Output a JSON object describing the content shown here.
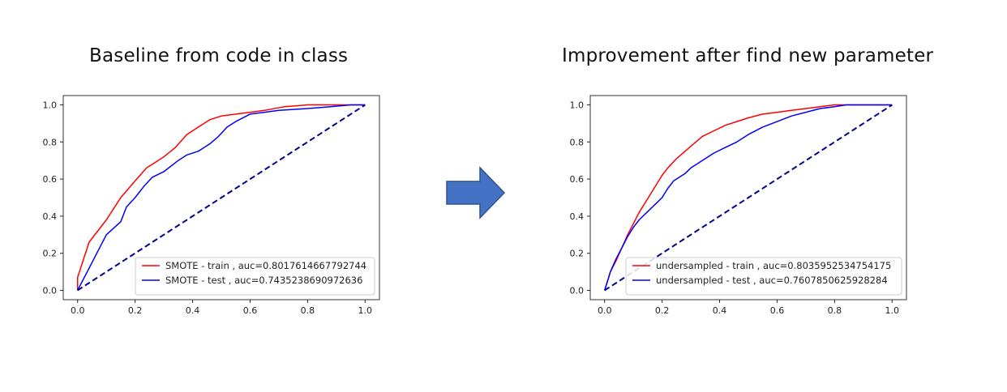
{
  "titles": {
    "left": "Baseline from code in class",
    "right": "Improvement after find new parameter"
  },
  "arrow_icon": "right-arrow",
  "colors": {
    "train": "#ff0000",
    "test": "#0000ff",
    "diagonal": "#00008b",
    "arrow": "#4472c4"
  },
  "chart_data": [
    {
      "type": "line",
      "title": "",
      "xlabel": "",
      "ylabel": "",
      "xlim": [
        0,
        1
      ],
      "ylim": [
        0,
        1
      ],
      "xticks": [
        "0.0",
        "0.2",
        "0.4",
        "0.6",
        "0.8",
        "1.0"
      ],
      "yticks": [
        "0.0",
        "0.2",
        "0.4",
        "0.6",
        "0.8",
        "1.0"
      ],
      "legend_position": "lower-right",
      "grid": false,
      "series": [
        {
          "name": "SMOTE - train , auc=0.8017614667792744",
          "color": "#ff0000",
          "x": [
            0,
            0,
            0.04,
            0.1,
            0.15,
            0.2,
            0.24,
            0.27,
            0.3,
            0.34,
            0.38,
            0.42,
            0.46,
            0.5,
            0.55,
            0.6,
            0.65,
            0.72,
            0.8,
            0.9,
            1.0
          ],
          "y": [
            0,
            0.07,
            0.26,
            0.38,
            0.5,
            0.59,
            0.66,
            0.69,
            0.72,
            0.77,
            0.84,
            0.88,
            0.92,
            0.94,
            0.95,
            0.96,
            0.97,
            0.99,
            1.0,
            1.0,
            1.0
          ]
        },
        {
          "name": "SMOTE - test , auc=0.7435238690972636",
          "color": "#0000ff",
          "x": [
            0,
            0.05,
            0.1,
            0.15,
            0.17,
            0.2,
            0.23,
            0.26,
            0.3,
            0.35,
            0.38,
            0.42,
            0.46,
            0.49,
            0.52,
            0.55,
            0.6,
            0.65,
            0.7,
            0.8,
            0.88,
            0.95,
            1.0
          ],
          "y": [
            0,
            0.15,
            0.3,
            0.37,
            0.45,
            0.5,
            0.56,
            0.61,
            0.64,
            0.7,
            0.73,
            0.75,
            0.79,
            0.83,
            0.88,
            0.91,
            0.95,
            0.96,
            0.97,
            0.98,
            0.99,
            1.0,
            1.0
          ]
        },
        {
          "name": "",
          "style": "dashed",
          "color": "#00008b",
          "x": [
            0,
            1
          ],
          "y": [
            0,
            1
          ]
        }
      ]
    },
    {
      "type": "line",
      "title": "",
      "xlabel": "",
      "ylabel": "",
      "xlim": [
        0,
        1
      ],
      "ylim": [
        0,
        1
      ],
      "xticks": [
        "0.0",
        "0.2",
        "0.4",
        "0.6",
        "0.8",
        "1.0"
      ],
      "yticks": [
        "0.0",
        "0.2",
        "0.4",
        "0.6",
        "0.8",
        "1.0"
      ],
      "legend_position": "lower-right",
      "grid": false,
      "series": [
        {
          "name": "undersampled - train , auc=0.8035952534754175",
          "color": "#ff0000",
          "x": [
            0,
            0.01,
            0.02,
            0.04,
            0.06,
            0.08,
            0.1,
            0.12,
            0.14,
            0.16,
            0.18,
            0.2,
            0.22,
            0.25,
            0.28,
            0.31,
            0.34,
            0.38,
            0.42,
            0.46,
            0.5,
            0.55,
            0.6,
            0.65,
            0.7,
            0.75,
            0.8,
            0.9,
            1.0
          ],
          "y": [
            0,
            0.05,
            0.1,
            0.16,
            0.23,
            0.3,
            0.36,
            0.42,
            0.47,
            0.52,
            0.57,
            0.62,
            0.66,
            0.71,
            0.75,
            0.79,
            0.83,
            0.86,
            0.89,
            0.91,
            0.93,
            0.95,
            0.96,
            0.97,
            0.98,
            0.99,
            1.0,
            1.0,
            1.0
          ]
        },
        {
          "name": "undersampled - test , auc=0.7607850625928284",
          "color": "#0000ff",
          "x": [
            0,
            0.01,
            0.02,
            0.04,
            0.06,
            0.08,
            0.1,
            0.12,
            0.14,
            0.16,
            0.18,
            0.2,
            0.22,
            0.24,
            0.26,
            0.28,
            0.3,
            0.32,
            0.35,
            0.38,
            0.42,
            0.46,
            0.5,
            0.55,
            0.6,
            0.65,
            0.7,
            0.75,
            0.8,
            0.84,
            0.9,
            1.0
          ],
          "y": [
            0,
            0.05,
            0.1,
            0.17,
            0.23,
            0.29,
            0.34,
            0.38,
            0.41,
            0.44,
            0.47,
            0.5,
            0.55,
            0.59,
            0.61,
            0.63,
            0.66,
            0.68,
            0.71,
            0.74,
            0.77,
            0.8,
            0.84,
            0.88,
            0.91,
            0.94,
            0.96,
            0.98,
            0.99,
            1.0,
            1.0,
            1.0
          ]
        },
        {
          "name": "",
          "style": "dashed",
          "color": "#00008b",
          "x": [
            0,
            1
          ],
          "y": [
            0,
            1
          ]
        }
      ]
    }
  ]
}
